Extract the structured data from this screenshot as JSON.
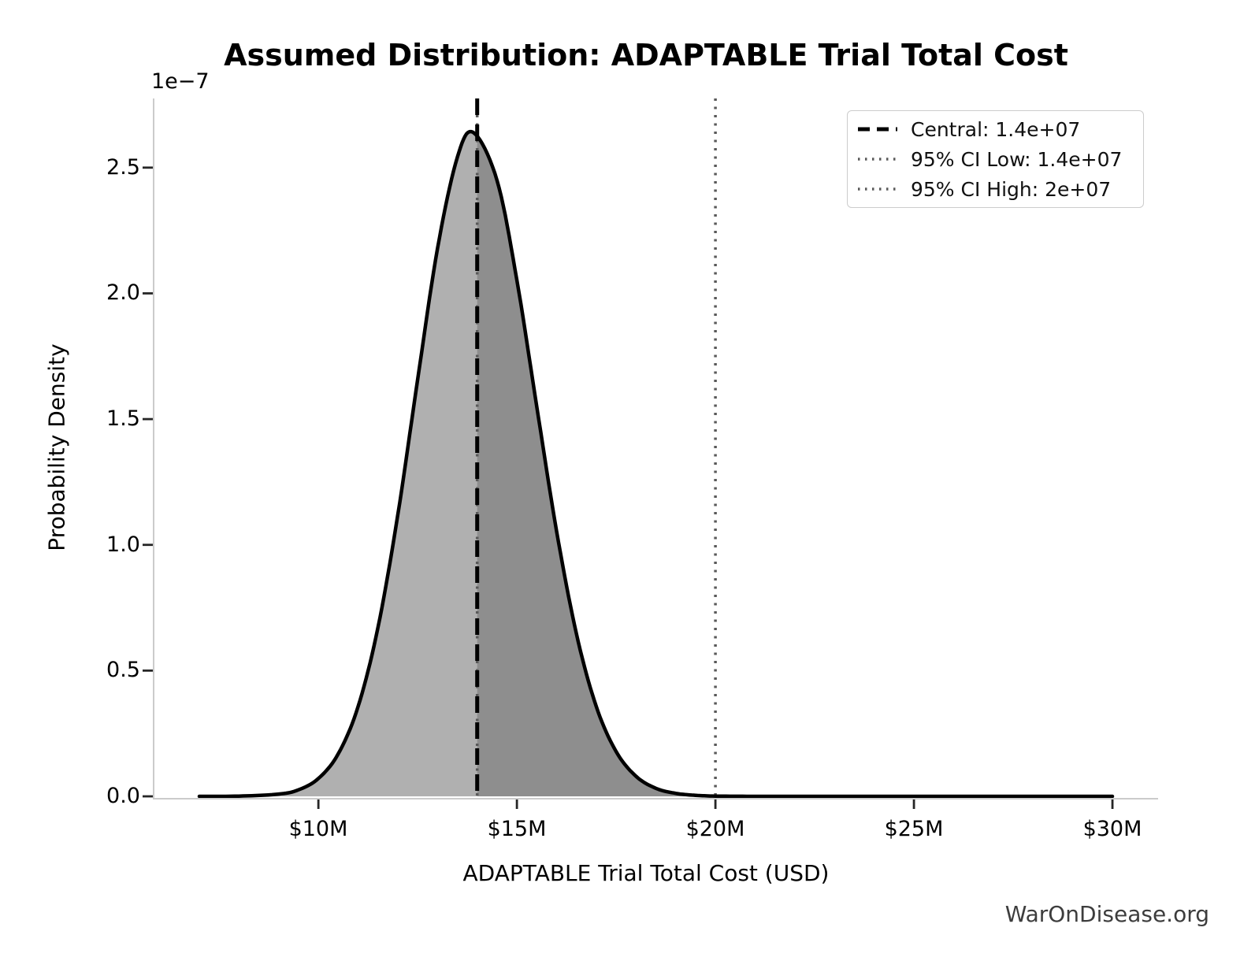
{
  "title": "Assumed Distribution: ADAPTABLE Trial Total Cost",
  "watermark": "WarOnDisease.org",
  "chart_data": {
    "type": "area",
    "title": "Assumed Distribution: ADAPTABLE Trial Total Cost",
    "xlabel": "ADAPTABLE Trial Total Cost (USD)",
    "ylabel": "Probability Density",
    "y_offset_label": "1e−7",
    "grid": false,
    "x_tick_labels": [
      "$10M",
      "$15M",
      "$20M",
      "$25M",
      "$30M"
    ],
    "x_tick_values_millions": [
      10,
      15,
      20,
      25,
      30
    ],
    "y_tick_labels": [
      "0.0",
      "0.5",
      "1.0",
      "1.5",
      "2.0",
      "2.5"
    ],
    "y_tick_values_1e7": [
      0,
      0.5,
      1.0,
      1.5,
      2.0,
      2.5
    ],
    "xlim_millions": [
      5.85,
      31.15
    ],
    "ylim_1e7": [
      0,
      2.775
    ],
    "series": [
      {
        "name": "assumed-cost-density",
        "x_millions": [
          7,
          8,
          9,
          9.5,
          10,
          10.5,
          11,
          11.5,
          12,
          12.5,
          13,
          13.5,
          13.9,
          14.5,
          15,
          15.5,
          16,
          16.5,
          17,
          17.5,
          18,
          18.5,
          19,
          19.5,
          20,
          21,
          22,
          24,
          26,
          28,
          30
        ],
        "density_1e7": [
          0,
          0.001,
          0.009,
          0.026,
          0.071,
          0.169,
          0.357,
          0.671,
          1.119,
          1.657,
          2.178,
          2.541,
          2.64,
          2.449,
          2.052,
          1.55,
          1.054,
          0.646,
          0.357,
          0.178,
          0.08,
          0.032,
          0.012,
          0.004,
          0.001,
          0,
          0,
          0,
          0,
          0,
          0
        ],
        "peak_density_1e7": 2.64,
        "line_color": "#000000"
      }
    ],
    "fill": {
      "base_color": "#b0b0b0",
      "ci_color": "#8e8e8e",
      "ci_range_millions": [
        14,
        20
      ]
    },
    "vlines": [
      {
        "name": "central",
        "x_millions": 14,
        "style": "dashed",
        "color": "#000000"
      },
      {
        "name": "ci_low",
        "x_millions": 14,
        "style": "dotted",
        "color": "#595959"
      },
      {
        "name": "ci_high",
        "x_millions": 20,
        "style": "dotted",
        "color": "#595959"
      }
    ],
    "legend": {
      "position": "upper right",
      "entries": [
        {
          "label": "Central: 1.4e+07",
          "style": "dashed",
          "color": "#000000"
        },
        {
          "label": "95% CI Low: 1.4e+07",
          "style": "dotted",
          "color": "#595959"
        },
        {
          "label": "95% CI High: 2e+07",
          "style": "dotted",
          "color": "#595959"
        }
      ]
    }
  }
}
